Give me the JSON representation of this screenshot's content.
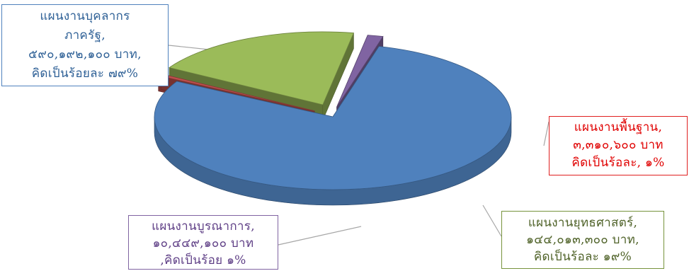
{
  "chart_data": {
    "type": "pie",
    "style": "3d-exploded",
    "series": [
      {
        "category": "แผนงานบุคลากรภาครัฐ",
        "value": 590192100,
        "percent": 79,
        "color": "#4f81bd",
        "label_lines": [
          "แผนงานบุคลากร",
          "ภาครัฐ,",
          "๕๙๐,๑๙๒,๑๐๐ บาท,",
          "คิดเป็นร้อยละ ๗๙%"
        ]
      },
      {
        "category": "แผนงานพื้นฐาน",
        "value": 3310600,
        "percent": 1,
        "color": "#c0504d",
        "label_lines": [
          "แผนงานพื้นฐาน,",
          "๓,๓๑๐,๖๐๐ บาท",
          "คิดเป็นร้อละ, ๑%"
        ]
      },
      {
        "category": "แผนงานยุทธศาสตร์",
        "value": 144013300,
        "percent": 19,
        "color": "#9bbb59",
        "label_lines": [
          "แผนงานยุทธศาสตร์,",
          "๑๔๔,๐๑๓,๓๐๐ บาท,",
          "คิดเป็นร้อละ ๑๙%"
        ]
      },
      {
        "category": "แผนงานบูรณาการ",
        "value": 10449100,
        "percent": 1,
        "color": "#8064a2",
        "label_lines": [
          "แผนงานบูรณาการ,",
          "๑๐,๔๔๙,๑๐๐ บาท",
          ",คิดเป็นร้อย ๑%"
        ]
      }
    ]
  }
}
